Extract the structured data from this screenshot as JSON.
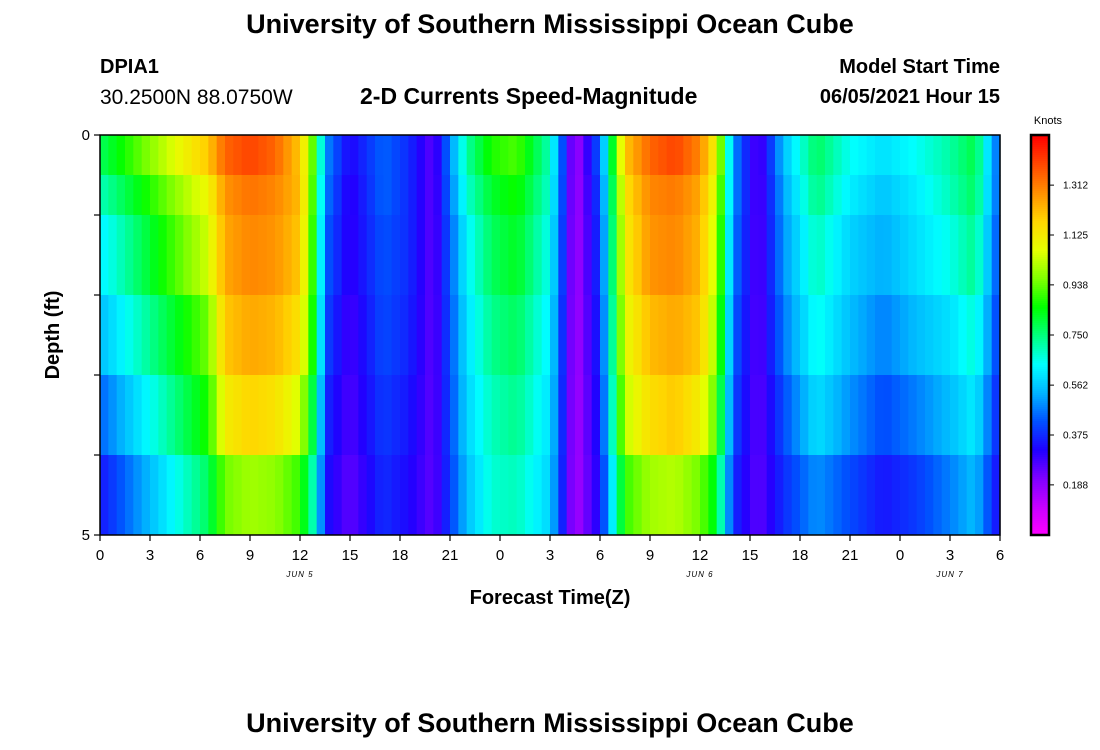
{
  "header": {
    "title": "University of Southern Mississippi Ocean Cube",
    "station_id": "DPIA1",
    "coordinates": "30.2500N  88.0750W",
    "chart_title": "2-D Currents Speed-Magnitude",
    "model_start_label": "Model Start Time",
    "model_start_value": "06/05/2021 Hour 15"
  },
  "footer": {
    "title": "University of Southern Mississippi Ocean Cube"
  },
  "colors": {
    "scale": [
      "#ff00ff",
      "#c800ff",
      "#8000ff",
      "#2000ff",
      "#0050ff",
      "#00b4ff",
      "#00ffff",
      "#00ff80",
      "#00ff00",
      "#80ff00",
      "#e6ff00",
      "#ffd700",
      "#ff9000",
      "#ff4800",
      "#ff0000"
    ]
  },
  "chart_data": {
    "type": "heatmap",
    "xlabel": "Forecast Time(Z)",
    "ylabel": "Depth (ft)",
    "x_ticks": [
      "0",
      "3",
      "6",
      "9",
      "12",
      "15",
      "18",
      "21",
      "0",
      "3",
      "6",
      "9",
      "12",
      "15",
      "18",
      "21",
      "0",
      "3",
      "6"
    ],
    "y_ticks": [
      "0",
      "5"
    ],
    "y_range": [
      0,
      5
    ],
    "date_labels": [
      {
        "label": "JUN 5",
        "hour": 12
      },
      {
        "label": "JUN 6",
        "hour": 36
      },
      {
        "label": "JUN 7",
        "hour": 51
      }
    ],
    "colorbar": {
      "label": "Knots",
      "ticks": [
        "1.312",
        "1.125",
        "0.938",
        "0.750",
        "0.562",
        "0.375",
        "0.188"
      ],
      "range": [
        0,
        1.5
      ]
    },
    "depth_levels": [
      0.25,
      0.75,
      1.5,
      2.5,
      3.5,
      4.5
    ],
    "hours": [
      0,
      6.5,
      7.5,
      9,
      10.5,
      12,
      13,
      13.5,
      15,
      17,
      18.5,
      20,
      22,
      23.5,
      25,
      27,
      28.5,
      30,
      31.5,
      33,
      34.5,
      36,
      37,
      38,
      39.5,
      41,
      43,
      45,
      47,
      49,
      51,
      52.5,
      54
    ],
    "speeds": [
      [
        0.78,
        1.2,
        1.35,
        1.4,
        1.35,
        1.2,
        0.85,
        0.5,
        0.32,
        0.45,
        0.38,
        0.25,
        0.72,
        0.88,
        0.92,
        0.7,
        0.15,
        0.45,
        1.2,
        1.35,
        1.4,
        1.3,
        1.1,
        0.5,
        0.25,
        0.55,
        0.78,
        0.65,
        0.6,
        0.65,
        0.72,
        0.8,
        0.42
      ],
      [
        0.7,
        1.1,
        1.28,
        1.33,
        1.3,
        1.22,
        0.82,
        0.48,
        0.3,
        0.45,
        0.38,
        0.25,
        0.68,
        0.82,
        0.87,
        0.68,
        0.15,
        0.42,
        1.15,
        1.3,
        1.32,
        1.25,
        1.05,
        0.5,
        0.25,
        0.52,
        0.75,
        0.62,
        0.56,
        0.62,
        0.7,
        0.78,
        0.42
      ],
      [
        0.62,
        1.05,
        1.25,
        1.3,
        1.28,
        1.2,
        0.8,
        0.45,
        0.3,
        0.43,
        0.38,
        0.25,
        0.63,
        0.78,
        0.83,
        0.65,
        0.15,
        0.4,
        1.12,
        1.28,
        1.3,
        1.23,
        1.02,
        0.48,
        0.25,
        0.5,
        0.7,
        0.58,
        0.53,
        0.6,
        0.66,
        0.74,
        0.4
      ],
      [
        0.55,
        0.95,
        1.2,
        1.25,
        1.23,
        1.15,
        0.78,
        0.42,
        0.28,
        0.42,
        0.37,
        0.25,
        0.6,
        0.74,
        0.78,
        0.62,
        0.15,
        0.38,
        1.08,
        1.22,
        1.25,
        1.2,
        0.98,
        0.45,
        0.25,
        0.47,
        0.66,
        0.55,
        0.48,
        0.55,
        0.6,
        0.68,
        0.38
      ],
      [
        0.45,
        0.88,
        1.12,
        1.18,
        1.15,
        1.05,
        0.72,
        0.38,
        0.27,
        0.4,
        0.35,
        0.25,
        0.58,
        0.7,
        0.74,
        0.6,
        0.15,
        0.36,
        1.03,
        1.16,
        1.2,
        1.12,
        0.92,
        0.42,
        0.25,
        0.42,
        0.6,
        0.5,
        0.42,
        0.48,
        0.55,
        0.62,
        0.35
      ],
      [
        0.35,
        0.78,
        0.95,
        1.0,
        0.98,
        0.9,
        0.65,
        0.35,
        0.25,
        0.38,
        0.33,
        0.25,
        0.55,
        0.68,
        0.7,
        0.58,
        0.15,
        0.34,
        0.9,
        1.0,
        1.02,
        0.95,
        0.82,
        0.38,
        0.25,
        0.38,
        0.5,
        0.42,
        0.35,
        0.4,
        0.48,
        0.55,
        0.32
      ]
    ]
  }
}
